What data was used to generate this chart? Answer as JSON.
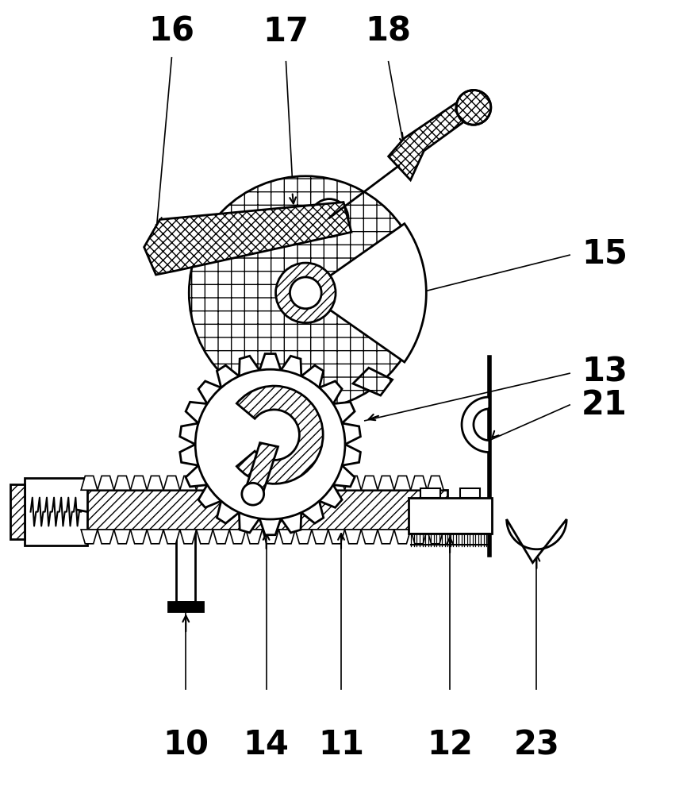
{
  "bg_color": "#ffffff",
  "line_color": "#000000",
  "figsize": [
    8.66,
    10.0
  ],
  "dpi": 100,
  "label_fontsize": 30
}
